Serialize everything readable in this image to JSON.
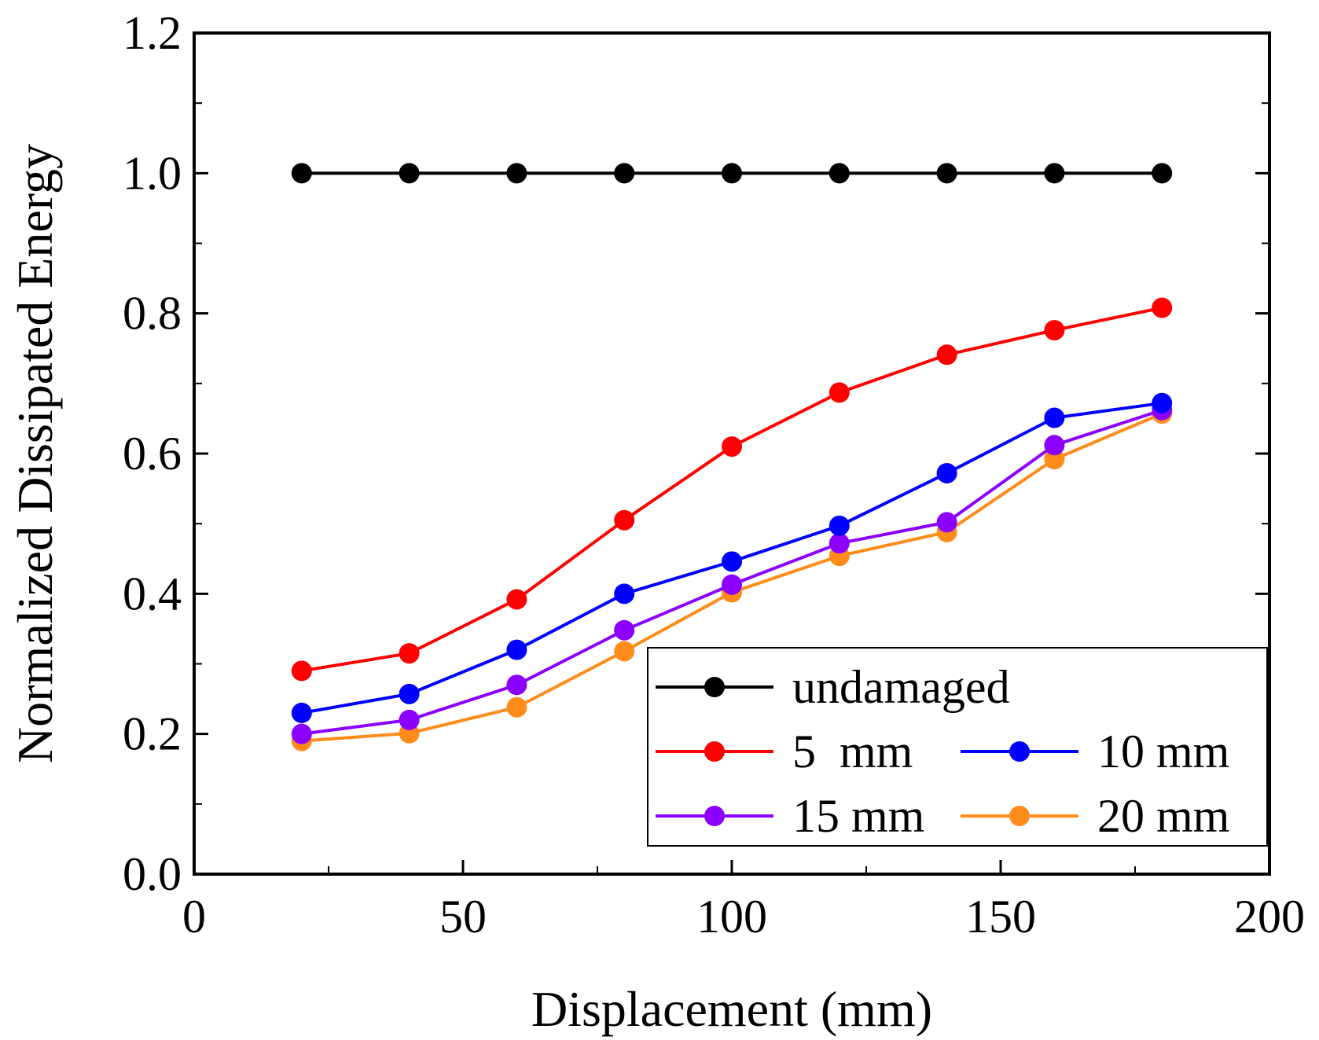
{
  "chart_data": {
    "type": "line",
    "xlabel": "Displacement (mm)",
    "ylabel": "Normalized Dissipated Energy",
    "xlim": [
      0,
      200
    ],
    "ylim": [
      0.0,
      1.2
    ],
    "x_ticks": [
      "0",
      "50",
      "100",
      "150",
      "200"
    ],
    "y_ticks": [
      "0.0",
      "0.2",
      "0.4",
      "0.6",
      "0.8",
      "1.0",
      "1.2"
    ],
    "x": [
      20,
      40,
      60,
      80,
      100,
      120,
      140,
      160,
      180
    ],
    "grid": false,
    "legend_position": "bottom-right",
    "series": [
      {
        "name": "undamaged",
        "color": "#000000",
        "values": [
          1.0,
          1.0,
          1.0,
          1.0,
          1.0,
          1.0,
          1.0,
          1.0,
          1.0
        ]
      },
      {
        "name": "5  mm",
        "color": "#ff0000",
        "values": [
          0.29,
          0.315,
          0.392,
          0.505,
          0.61,
          0.687,
          0.741,
          0.776,
          0.808
        ]
      },
      {
        "name": "10 mm",
        "color": "#0000ff",
        "values": [
          0.23,
          0.257,
          0.32,
          0.4,
          0.446,
          0.497,
          0.572,
          0.651,
          0.672
        ]
      },
      {
        "name": "15 mm",
        "color": "#8b00ff",
        "values": [
          0.2,
          0.22,
          0.27,
          0.348,
          0.413,
          0.472,
          0.502,
          0.612,
          0.662
        ]
      },
      {
        "name": "20 mm",
        "color": "#ff8c1a",
        "values": [
          0.19,
          0.201,
          0.238,
          0.318,
          0.402,
          0.454,
          0.488,
          0.592,
          0.657
        ]
      }
    ]
  }
}
